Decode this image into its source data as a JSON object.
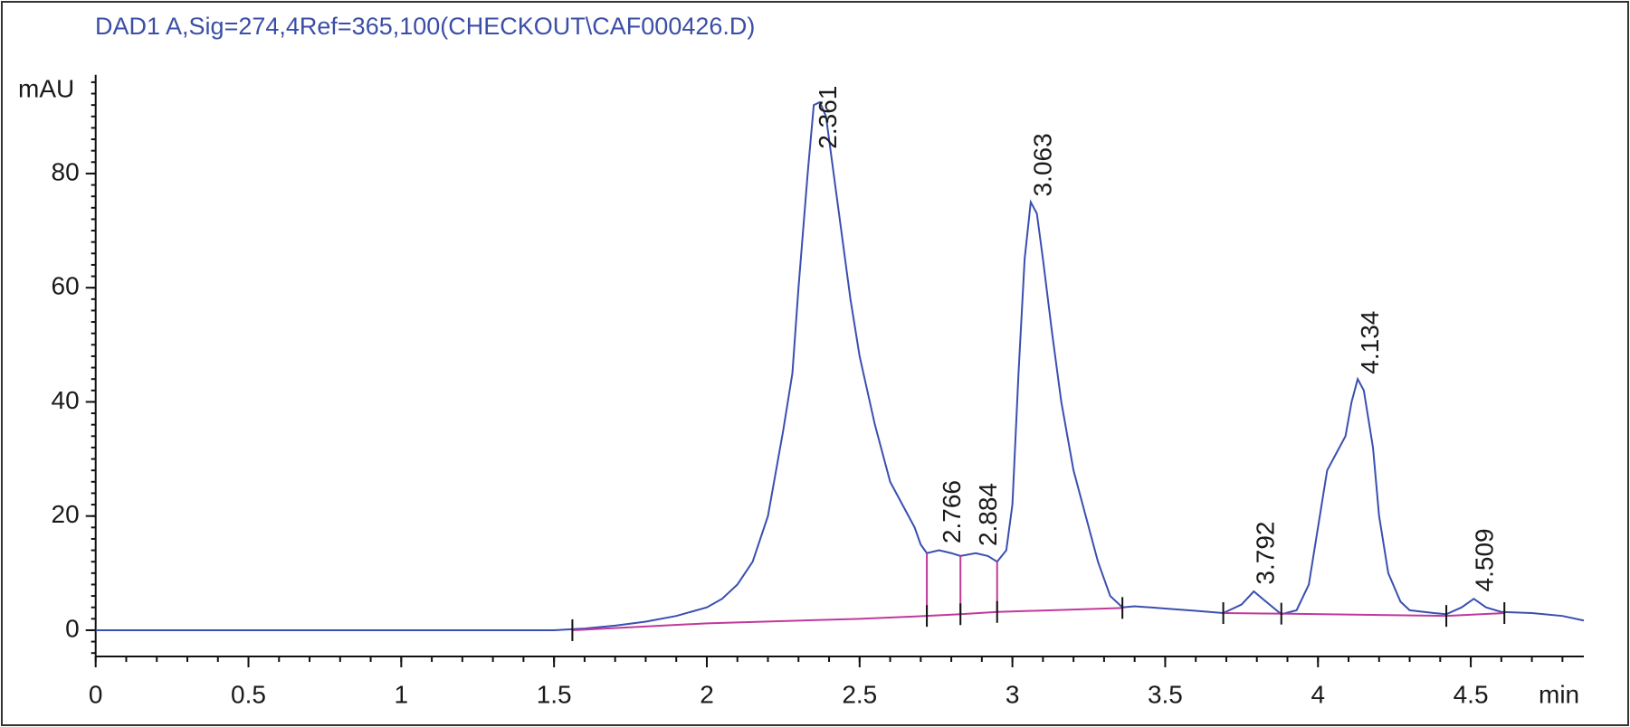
{
  "chart_data": {
    "type": "line",
    "title": "DAD1 A,Sig=274,4Ref=365,100(CHECKOUT\\CAF000426.D)",
    "y_label": "mAU",
    "x_label": "min",
    "xlim": [
      0,
      4.87
    ],
    "ylim": [
      -4.6,
      97.3
    ],
    "xticks": [
      0,
      0.5,
      1,
      1.5,
      2,
      2.5,
      3,
      3.5,
      4,
      4.5
    ],
    "yticks": [
      0,
      20,
      40,
      60,
      80
    ],
    "x_minor_step": 0.1,
    "y_minor_step": 2,
    "x": [
      0,
      1.5,
      1.6,
      1.7,
      1.8,
      1.9,
      2.0,
      2.05,
      2.1,
      2.15,
      2.2,
      2.25,
      2.28,
      2.3,
      2.33,
      2.35,
      2.37,
      2.39,
      2.41,
      2.44,
      2.47,
      2.5,
      2.55,
      2.6,
      2.65,
      2.68,
      2.7,
      2.72,
      2.76,
      2.8,
      2.83,
      2.88,
      2.92,
      2.95,
      2.98,
      3.0,
      3.02,
      3.04,
      3.06,
      3.08,
      3.1,
      3.13,
      3.16,
      3.2,
      3.24,
      3.28,
      3.32,
      3.36,
      3.4,
      3.5,
      3.6,
      3.69,
      3.75,
      3.79,
      3.83,
      3.88,
      3.93,
      3.97,
      4.0,
      4.03,
      4.06,
      4.09,
      4.11,
      4.13,
      4.15,
      4.18,
      4.2,
      4.23,
      4.27,
      4.3,
      4.38,
      4.42,
      4.47,
      4.51,
      4.55,
      4.6,
      4.7,
      4.8,
      4.87
    ],
    "series": [
      {
        "color": "#3a4fb0",
        "values": [
          0,
          0,
          0.3,
          0.8,
          1.5,
          2.5,
          4,
          5.5,
          8,
          12,
          20,
          35,
          45,
          60,
          80,
          92,
          92.5,
          90,
          82,
          70,
          58,
          48,
          36,
          26,
          21,
          18,
          15,
          13.5,
          14,
          13.5,
          13,
          13.5,
          13,
          12,
          14,
          22,
          45,
          65,
          75,
          73,
          65,
          52,
          40,
          28,
          20,
          12,
          6,
          4,
          4.2,
          3.8,
          3.4,
          3,
          4.5,
          6.8,
          5,
          2.8,
          3.5,
          8,
          18,
          28,
          31,
          34,
          40,
          44,
          42,
          32,
          20,
          10,
          5,
          3.5,
          3,
          2.8,
          4,
          5.5,
          4,
          3.2,
          3,
          2.5,
          1.7
        ]
      },
      {
        "color": "#c0399b",
        "x": [
          1.56,
          2.0,
          2.5,
          2.72,
          2.83,
          2.95,
          3.36,
          3.5,
          3.69,
          3.88,
          4.42,
          4.61
        ],
        "values": [
          0,
          1.2,
          2.0,
          2.5,
          2.8,
          3.2,
          3.9,
          null,
          3.0,
          2.9,
          2.5,
          3.0
        ]
      }
    ],
    "drop_lines": [
      2.72,
      2.83,
      2.95
    ],
    "event_ticks": [
      1.56,
      2.72,
      2.83,
      2.95,
      3.36,
      3.69,
      3.88,
      4.42,
      4.61
    ],
    "peak_labels": [
      2.361,
      2.766,
      2.884,
      3.063,
      3.792,
      4.134,
      4.509
    ]
  }
}
